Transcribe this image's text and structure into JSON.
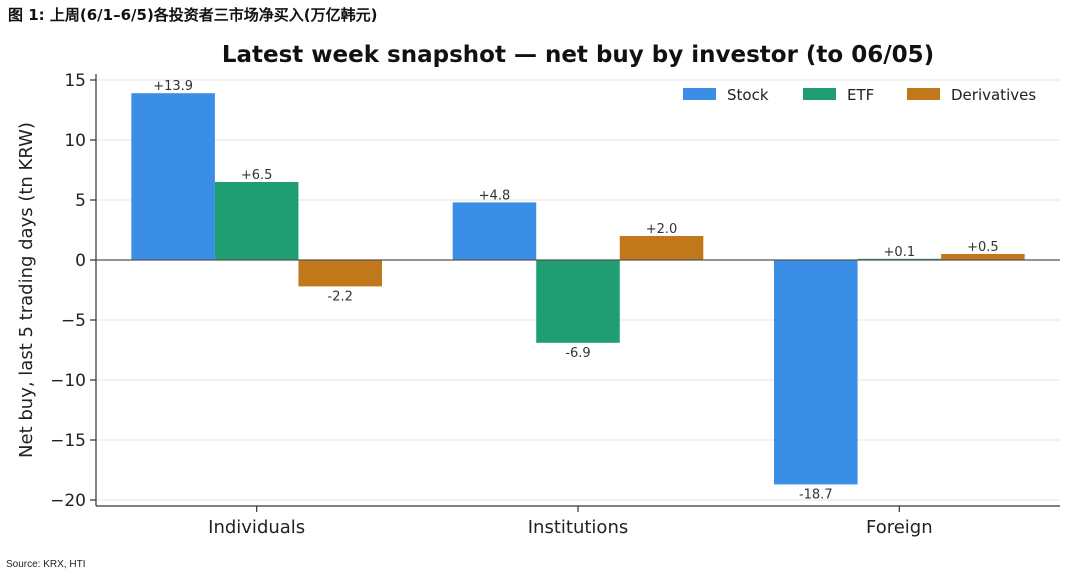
{
  "figure_caption": "图 1:  上周(6/1–6/5)各投资者三市场净买入(万亿韩元)",
  "source_note": "Source: KRX, HTI",
  "chart_data": {
    "type": "bar",
    "title": "Latest week snapshot — net buy by investor (to 06/05)",
    "ylabel": "Net buy, last 5 trading days (tn KRW)",
    "xlabel": "",
    "categories": [
      "Individuals",
      "Institutions",
      "Foreign"
    ],
    "series": [
      {
        "name": "Stock",
        "color": "#3a8ee6",
        "values": [
          13.9,
          4.8,
          -18.7
        ],
        "labels": [
          "+13.9",
          "+4.8",
          "-18.7"
        ]
      },
      {
        "name": "ETF",
        "color": "#1f9e74",
        "values": [
          6.5,
          -6.9,
          0.1
        ],
        "labels": [
          "+6.5",
          "-6.9",
          "+0.1"
        ]
      },
      {
        "name": "Derivatives",
        "color": "#c0781b",
        "values": [
          -2.2,
          2.0,
          0.5
        ],
        "labels": [
          "-2.2",
          "+2.0",
          "+0.5"
        ]
      }
    ],
    "ylim": [
      -20.5,
      15.5
    ],
    "yticks": [
      15,
      10,
      5,
      0,
      -5,
      -10,
      -15,
      -20
    ],
    "ytick_labels": [
      "15",
      "10",
      "5",
      "0",
      "−5",
      "−10",
      "−15",
      "−20"
    ],
    "grid": true,
    "legend_position": "top-right"
  }
}
